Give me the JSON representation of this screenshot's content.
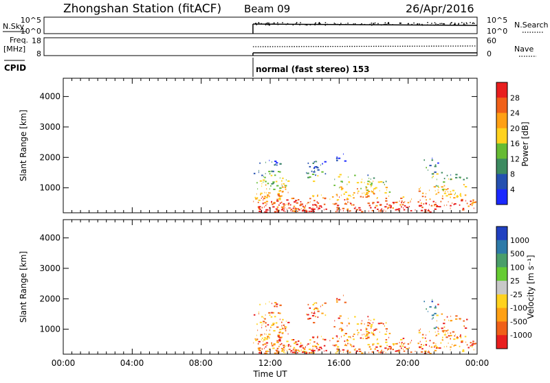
{
  "header": {
    "station": "Zhongshan Station (fitACF)",
    "beam": "Beam 09",
    "date": "26/Apr/2016"
  },
  "strip_labels": {
    "nsky": "N.Sky",
    "nsearch": "N.Search",
    "freq": "Freq.",
    "freq_unit": "[MHz]",
    "nave": "Nave",
    "cpid": "CPID",
    "cpid_value": "normal (fast stereo) 153"
  },
  "noise_panel": {
    "left_ticks": [
      "10^5",
      "10^0"
    ],
    "right_ticks": [
      "10^5",
      "10^0"
    ]
  },
  "freq_panel": {
    "left_ticks": [
      "18",
      "8"
    ],
    "right_ticks": [
      "60",
      "0"
    ]
  },
  "chart_data": [
    {
      "type": "heatmap",
      "title": "",
      "variable": "Power",
      "xlabel": "Time UT",
      "ylabel": "Slant Range [km]",
      "xlim": [
        "00:00",
        "24:00"
      ],
      "ylim": [
        180,
        4600
      ],
      "x_ticks": [
        "00:00",
        "04:00",
        "08:00",
        "12:00",
        "16:00",
        "20:00",
        "00:00"
      ],
      "y_ticks": [
        1000,
        2000,
        3000,
        4000
      ],
      "colorbar": {
        "label": "Power [dB]",
        "ticks": [
          "4",
          "8",
          "12",
          "16",
          "20",
          "24",
          "28"
        ],
        "colors": [
          "#1a28ff",
          "#2450b0",
          "#3c8a60",
          "#66bb33",
          "#ffd21e",
          "#ffa014",
          "#f06018",
          "#e81e1e"
        ]
      },
      "data_start": "~11:00 UT"
    },
    {
      "type": "heatmap",
      "title": "",
      "variable": "Velocity",
      "xlabel": "Time UT",
      "ylabel": "Slant Range [km]",
      "xlim": [
        "00:00",
        "24:00"
      ],
      "ylim": [
        180,
        4600
      ],
      "x_ticks": [
        "00:00",
        "04:00",
        "08:00",
        "12:00",
        "16:00",
        "20:00",
        "00:00"
      ],
      "y_ticks": [
        1000,
        2000,
        3000,
        4000
      ],
      "colorbar": {
        "label": "Velocity [m s⁻¹]",
        "ticks": [
          "1000",
          "500",
          "100",
          "25",
          "-25",
          "-100",
          "-500",
          "-1000"
        ],
        "colors": [
          "#2040c0",
          "#2e7aa8",
          "#4a9e6a",
          "#66cc33",
          "#c8c8c8",
          "#ffd21e",
          "#ffa014",
          "#f06018",
          "#e81e1e"
        ]
      },
      "data_start": "~11:00 UT"
    }
  ]
}
